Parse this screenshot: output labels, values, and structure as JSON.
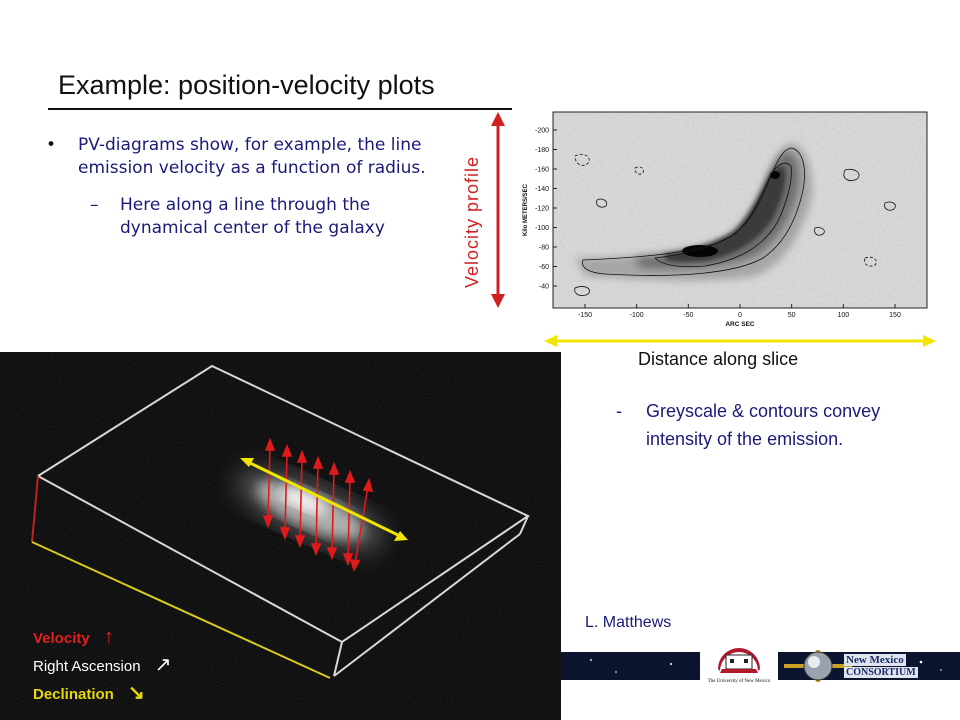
{
  "slide": {
    "title": "Example:  position-velocity plots",
    "bullet_1": "PV-diagrams show, for example, the line emission velocity as a function of radius.",
    "bullet_1_sub": "Here along a line through the dynamical center of the galaxy",
    "velocity_profile_label": "Velocity   profile",
    "distance_label": "Distance along slice",
    "note_dash": "-",
    "note_text": "Greyscale & contours convey intensity of the emission.",
    "credit": "L. Matthews"
  },
  "pv_plot": {
    "y_axis_label": "Kilo METERS/SEC",
    "x_axis_label": "ARC SEC",
    "y_ticks": [
      "-200",
      "-180",
      "-160",
      "-140",
      "-120",
      "-100",
      "-80",
      "-60",
      "-40"
    ],
    "x_ticks": [
      "-150",
      "-100",
      "-50",
      "0",
      "50",
      "100",
      "150"
    ]
  },
  "cube_legend": {
    "velocity": "Velocity",
    "right_ascension": "Right Ascension",
    "declination": "Declination"
  },
  "logos": {
    "unm": "The University of New Mexico",
    "nmc_line1": "New Mexico",
    "nmc_line2": "CONSORTIUM"
  },
  "colors": {
    "accent_red": "#d21f1f",
    "accent_yellow": "#f2e600",
    "text_blue": "#1a1a7a"
  }
}
